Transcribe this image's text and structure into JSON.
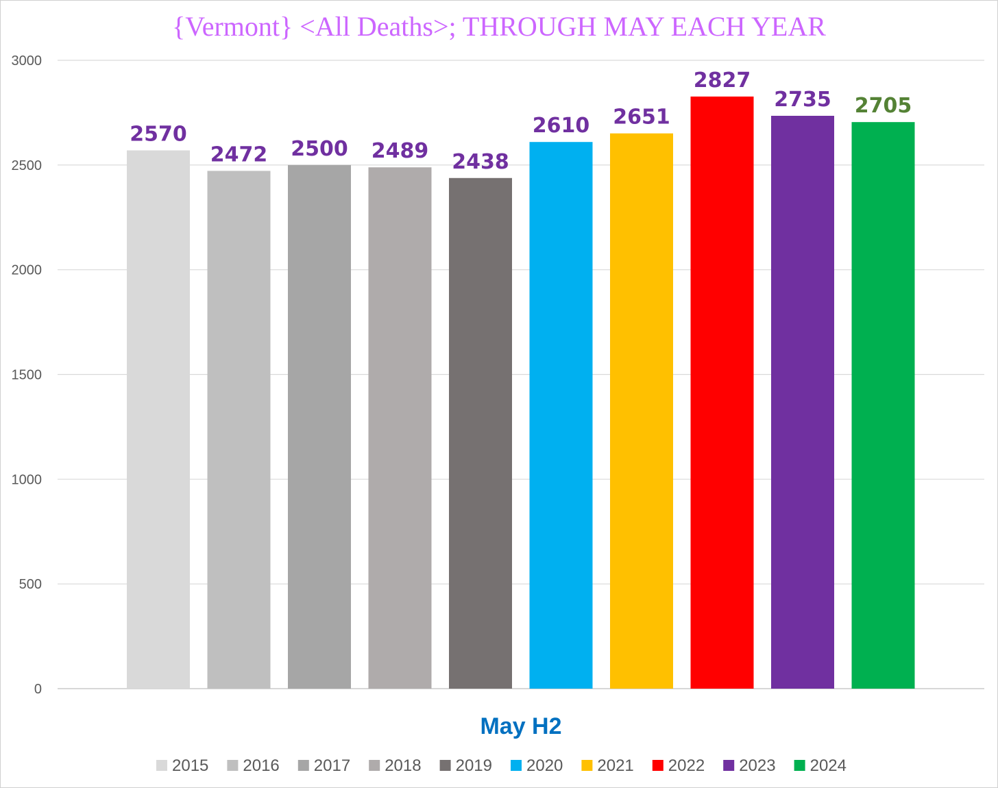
{
  "chart_data": {
    "type": "bar",
    "title": "{Vermont}  <All Deaths>; THROUGH MAY EACH YEAR",
    "xlabel": "May H2",
    "ylabel": "",
    "ylim": [
      0,
      3000
    ],
    "yticks": [
      0,
      500,
      1000,
      1500,
      2000,
      2500,
      3000
    ],
    "grid": true,
    "legend_position": "bottom",
    "category": "May H2",
    "series": [
      {
        "name": "2015",
        "value": 2570,
        "color": "#d9d9d9",
        "label_color": "#7030a0"
      },
      {
        "name": "2016",
        "value": 2472,
        "color": "#bfbfbf",
        "label_color": "#7030a0"
      },
      {
        "name": "2017",
        "value": 2500,
        "color": "#a6a6a6",
        "label_color": "#7030a0"
      },
      {
        "name": "2018",
        "value": 2489,
        "color": "#afabab",
        "label_color": "#7030a0"
      },
      {
        "name": "2019",
        "value": 2438,
        "color": "#767171",
        "label_color": "#7030a0"
      },
      {
        "name": "2020",
        "value": 2610,
        "color": "#00b0f0",
        "label_color": "#7030a0"
      },
      {
        "name": "2021",
        "value": 2651,
        "color": "#ffc000",
        "label_color": "#7030a0"
      },
      {
        "name": "2022",
        "value": 2827,
        "color": "#ff0000",
        "label_color": "#7030a0"
      },
      {
        "name": "2023",
        "value": 2735,
        "color": "#7030a0",
        "label_color": "#7030a0"
      },
      {
        "name": "2024",
        "value": 2705,
        "color": "#00b050",
        "label_color": "#548235"
      }
    ],
    "colors": {
      "title": "#cc66ff",
      "xlabel": "#0070c0",
      "grid": "#d9d9d9",
      "axis": "#bfbfbf"
    }
  }
}
